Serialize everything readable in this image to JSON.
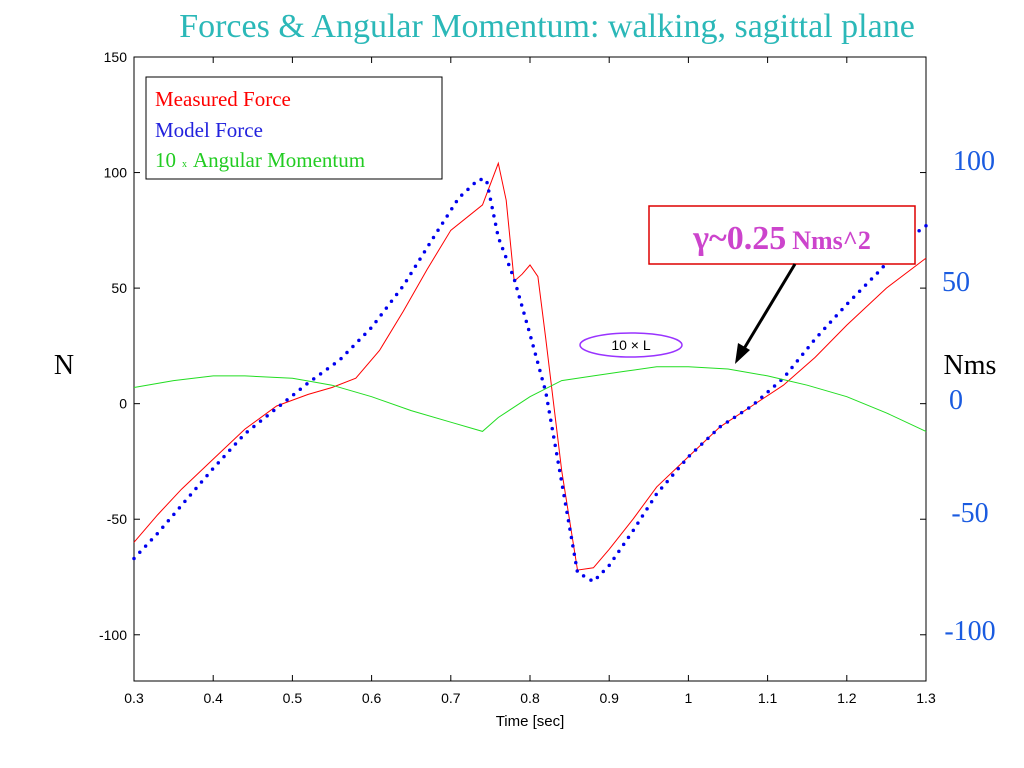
{
  "title": "Forces & Angular Momentum: walking, sagittal plane",
  "left_unit_label": "N",
  "right_unit_label": "Nms",
  "right_ticks": [
    "100",
    "50",
    "0",
    "-50",
    "-100"
  ],
  "legend": {
    "measured": "Measured Force",
    "model": "Model Force",
    "angmom_prefix": "10",
    "angmom_times": "x",
    "angmom_suffix": "Angular Momentum"
  },
  "annotation": {
    "gamma_main": "γ~0.25",
    "gamma_unit": "Nms^2",
    "ellipse_label": "10 × L"
  },
  "colors": {
    "measured": "#ff0000",
    "model": "#0000ee",
    "angular_momentum": "#22dd22",
    "title": "#2bb8b8",
    "right_axis": "#1a5be0",
    "annotation_box": "#dd0000",
    "gamma": "#cc44cc",
    "ellipse": "#9933ff"
  },
  "chart_data": {
    "type": "line",
    "xlabel": "Time [sec]",
    "ylabel": "",
    "xlim": [
      0.3,
      1.3
    ],
    "ylim": [
      -120,
      150
    ],
    "xticks": [
      "0.3",
      "0.4",
      "0.5",
      "0.6",
      "0.7",
      "0.8",
      "0.9",
      "1",
      "1.1",
      "1.2",
      "1.3"
    ],
    "yticks": [
      "150",
      "100",
      "50",
      "0",
      "-50",
      "-100"
    ],
    "grid": false,
    "legend_position": "top-left",
    "series": [
      {
        "name": "Measured Force",
        "style": "solid",
        "x": [
          0.3,
          0.33,
          0.36,
          0.4,
          0.44,
          0.48,
          0.52,
          0.55,
          0.58,
          0.61,
          0.64,
          0.67,
          0.7,
          0.74,
          0.76,
          0.77,
          0.78,
          0.79,
          0.8,
          0.81,
          0.82,
          0.84,
          0.86,
          0.88,
          0.9,
          0.93,
          0.96,
          1.0,
          1.04,
          1.08,
          1.12,
          1.16,
          1.2,
          1.25,
          1.3
        ],
        "y": [
          -60,
          -48,
          -37,
          -24,
          -11,
          -1,
          4,
          7,
          11,
          23,
          40,
          58,
          75,
          86,
          104,
          88,
          53,
          56,
          60,
          55,
          28,
          -29,
          -72,
          -71,
          -63,
          -50,
          -36,
          -23,
          -10,
          -1,
          8,
          20,
          34,
          50,
          63
        ]
      },
      {
        "name": "Model Force",
        "style": "dotted",
        "x": [
          0.3,
          0.33,
          0.36,
          0.4,
          0.44,
          0.48,
          0.52,
          0.56,
          0.6,
          0.64,
          0.68,
          0.71,
          0.735,
          0.745,
          0.76,
          0.78,
          0.8,
          0.82,
          0.84,
          0.86,
          0.88,
          0.9,
          0.93,
          0.96,
          1.0,
          1.04,
          1.08,
          1.12,
          1.16,
          1.2,
          1.24,
          1.28,
          1.3
        ],
        "y": [
          -67,
          -56,
          -44,
          -28,
          -13,
          -2,
          9,
          19,
          33,
          51,
          73,
          89,
          97,
          97,
          72,
          54,
          30,
          5,
          -34,
          -73,
          -77,
          -70,
          -55,
          -39,
          -23,
          -10,
          -1,
          11,
          28,
          43,
          57,
          72,
          77
        ]
      },
      {
        "name": "10 x Angular Momentum",
        "style": "solid",
        "x": [
          0.3,
          0.35,
          0.4,
          0.44,
          0.5,
          0.55,
          0.6,
          0.65,
          0.7,
          0.74,
          0.76,
          0.8,
          0.84,
          0.88,
          0.92,
          0.96,
          1.0,
          1.05,
          1.1,
          1.15,
          1.2,
          1.25,
          1.3
        ],
        "y": [
          7,
          10,
          12,
          12,
          11,
          8,
          3,
          -3,
          -8,
          -12,
          -6,
          3,
          10,
          12,
          14,
          16,
          16,
          15,
          12,
          8,
          3,
          -4,
          -12
        ]
      }
    ]
  }
}
